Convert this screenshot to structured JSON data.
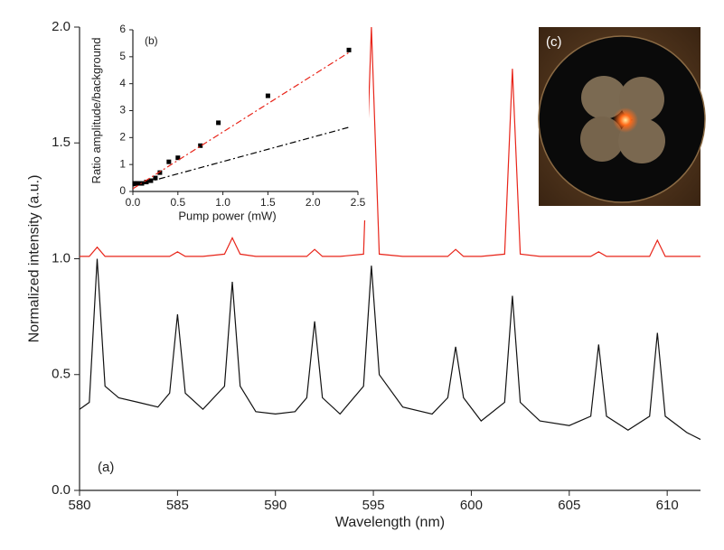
{
  "chart_data": [
    {
      "type": "line",
      "xlabel": "Wavelength (nm)",
      "ylabel": "Normalized intensity (a.u.)",
      "annotation": "(a)",
      "x": [
        580,
        580.5,
        580.9,
        581.3,
        582,
        583,
        584,
        584.6,
        585.0,
        585.4,
        586.3,
        587.4,
        587.8,
        588.2,
        589,
        590,
        591,
        591.6,
        592.0,
        592.4,
        593.3,
        594.5,
        594.9,
        595.3,
        596.5,
        598,
        598.8,
        599.2,
        599.6,
        600.5,
        601.7,
        602.1,
        602.5,
        603.5,
        605,
        606.1,
        606.5,
        606.9,
        608,
        609.1,
        609.5,
        609.9,
        611,
        611.7
      ],
      "series": [
        {
          "color": "#111111",
          "values": [
            0.35,
            0.38,
            1.0,
            0.45,
            0.4,
            0.38,
            0.36,
            0.42,
            0.76,
            0.42,
            0.35,
            0.45,
            0.9,
            0.45,
            0.34,
            0.33,
            0.34,
            0.4,
            0.73,
            0.4,
            0.33,
            0.45,
            0.97,
            0.5,
            0.36,
            0.33,
            0.4,
            0.62,
            0.4,
            0.3,
            0.38,
            0.84,
            0.38,
            0.3,
            0.28,
            0.32,
            0.63,
            0.32,
            0.26,
            0.32,
            0.68,
            0.32,
            0.25,
            0.22
          ]
        },
        {
          "color": "#e8251a",
          "values": [
            1.01,
            1.01,
            1.05,
            1.01,
            1.01,
            1.01,
            1.01,
            1.01,
            1.03,
            1.01,
            1.01,
            1.02,
            1.09,
            1.02,
            1.01,
            1.01,
            1.01,
            1.01,
            1.04,
            1.01,
            1.01,
            1.02,
            2.0,
            1.02,
            1.01,
            1.01,
            1.01,
            1.04,
            1.01,
            1.01,
            1.02,
            1.82,
            1.02,
            1.01,
            1.01,
            1.01,
            1.03,
            1.01,
            1.01,
            1.01,
            1.08,
            1.01,
            1.01,
            1.01
          ]
        }
      ],
      "xlim": [
        580,
        611.7
      ],
      "xticks": [
        580,
        585,
        590,
        595,
        600,
        605,
        610
      ],
      "ylim": [
        0,
        2
      ],
      "yticks": [
        {
          "value": 0,
          "label": "0.0"
        },
        0.5,
        {
          "value": 1,
          "label": "1.0"
        },
        1.5,
        {
          "value": 2,
          "label": "2.0"
        }
      ]
    },
    {
      "type": "scatter",
      "xlabel": "Pump power (mW)",
      "ylabel": "Ratio amplitude/background",
      "annotation": "(b)",
      "series": [
        {
          "type": "scatter",
          "color": "#000000",
          "x": [
            0.02,
            0.05,
            0.1,
            0.15,
            0.2,
            0.25,
            0.3,
            0.4,
            0.5,
            0.75,
            0.95,
            1.5,
            2.4
          ],
          "values": [
            0.3,
            0.3,
            0.3,
            0.35,
            0.4,
            0.5,
            0.7,
            1.1,
            1.25,
            1.7,
            2.55,
            3.55,
            5.25
          ]
        },
        {
          "type": "line",
          "color": "#e8251a",
          "x": [
            0,
            2.42
          ],
          "values": [
            0.1,
            5.2
          ]
        },
        {
          "type": "line",
          "color": "#000000",
          "x": [
            0,
            2.42
          ],
          "values": [
            0.2,
            2.4
          ]
        }
      ],
      "xlim": [
        0,
        2.5
      ],
      "xticks": [
        {
          "value": 0,
          "label": "0.0"
        },
        0.5,
        {
          "value": 1,
          "label": "1.0"
        },
        1.5,
        {
          "value": 2,
          "label": "2.0"
        },
        2.5
      ],
      "ylim": [
        0,
        6
      ],
      "yticks": [
        0,
        1,
        2,
        3,
        4,
        5,
        6
      ]
    }
  ],
  "image_panel": {
    "label": "(c)"
  }
}
